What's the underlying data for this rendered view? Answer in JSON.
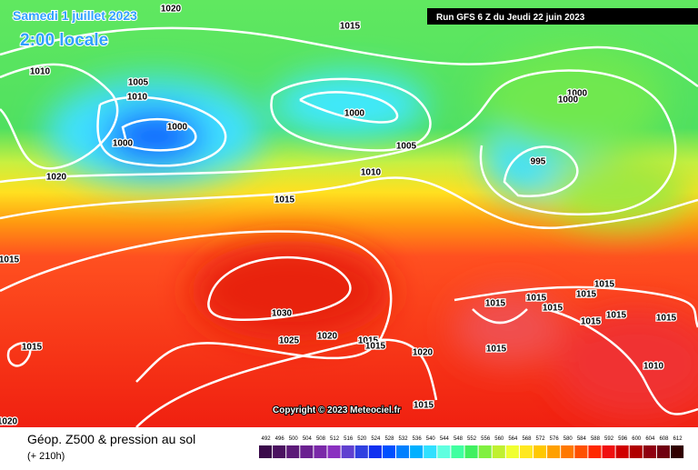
{
  "header": {
    "date": "Samedi 1 juillet 2023",
    "local_time": "2:00 locale",
    "run": "Run GFS 6 Z du Jeudi 22 juin 2023"
  },
  "isobar_labels": [
    "1020",
    "1015",
    "1010",
    "1005",
    "1010",
    "1000",
    "1000",
    "1000",
    "1005",
    "1010",
    "1020",
    "1015",
    "995",
    "1000",
    "1000",
    "1015",
    "1030",
    "1025",
    "1020",
    "1015",
    "1015",
    "1020",
    "1015",
    "1015",
    "1015",
    "1015",
    "1015",
    "1015",
    "1015",
    "1015",
    "1015",
    "1010",
    "1015",
    "1015",
    "1020"
  ],
  "copyright": "Copyright © 2023 Meteociel.fr",
  "footer": {
    "title": "Géop. Z500 & pression au sol",
    "lead": "(+ 210h)"
  },
  "scale": {
    "labels": [
      "492",
      "496",
      "500",
      "504",
      "508",
      "512",
      "516",
      "520",
      "524",
      "528",
      "532",
      "536",
      "540",
      "544",
      "548",
      "552",
      "556",
      "560",
      "564",
      "568",
      "572",
      "576",
      "580",
      "584",
      "588",
      "592",
      "596",
      "600",
      "604",
      "608",
      "612"
    ],
    "colors": [
      "#3a0a4a",
      "#4b1260",
      "#5c1a78",
      "#6a2090",
      "#7a28a8",
      "#8a30c0",
      "#6040d0",
      "#3040e0",
      "#1030f0",
      "#0050ff",
      "#0080ff",
      "#00b0ff",
      "#30e0ff",
      "#60ffe0",
      "#40ffa0",
      "#40f060",
      "#80f040",
      "#c0f030",
      "#f0ff30",
      "#ffe820",
      "#ffc800",
      "#ffa000",
      "#ff7800",
      "#ff5000",
      "#ff2800",
      "#f01010",
      "#d00000",
      "#b00000",
      "#900010",
      "#700010",
      "#300000"
    ]
  }
}
